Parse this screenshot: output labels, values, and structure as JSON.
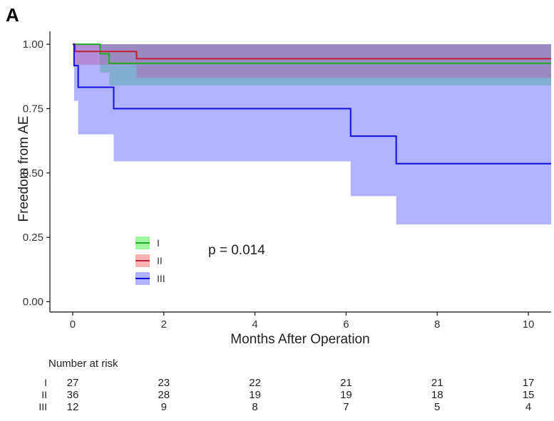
{
  "panel_label": "A",
  "chart_data": {
    "type": "line",
    "subtype": "kaplan-meier step curves with confidence bands",
    "title": "",
    "xlabel": "Months After Operation",
    "ylabel": "Freedom from AE",
    "xlim": [
      -0.5,
      10.5
    ],
    "ylim": [
      -0.04,
      1.05
    ],
    "xticks": [
      0,
      2,
      4,
      6,
      8,
      10
    ],
    "xtick_labels": [
      "0",
      "2",
      "4",
      "6",
      "8",
      "10"
    ],
    "yticks": [
      0.0,
      0.25,
      0.5,
      0.75,
      1.0
    ],
    "ytick_labels": [
      "0.00",
      "0.25",
      "0.50",
      "0.75",
      "1.00"
    ],
    "grid": false,
    "legend_position": "inside-bottom-left",
    "annotation": "p = 0.014",
    "series": [
      {
        "name": "I",
        "color": "#22aa22",
        "band_color": "#44ee44",
        "steps": [
          [
            0,
            1.0
          ],
          [
            0.6,
            0.963
          ],
          [
            0.8,
            0.926
          ],
          [
            10.5,
            0.926
          ]
        ],
        "band": [
          [
            0,
            1.0,
            1.0
          ],
          [
            0.6,
            0.89,
            1.0
          ],
          [
            0.8,
            0.84,
            1.0
          ],
          [
            10.5,
            0.84,
            1.0
          ]
        ]
      },
      {
        "name": "II",
        "color": "#bb2233",
        "band_color": "#ff6666",
        "steps": [
          [
            0,
            1.0
          ],
          [
            0.05,
            0.972
          ],
          [
            1.4,
            0.944
          ],
          [
            10.5,
            0.944
          ]
        ],
        "band": [
          [
            0,
            1.0,
            1.0
          ],
          [
            0.05,
            0.92,
            1.0
          ],
          [
            1.4,
            0.87,
            1.0
          ],
          [
            10.5,
            0.87,
            1.0
          ]
        ]
      },
      {
        "name": "III",
        "color": "#1111dd",
        "band_color": "#6666ff",
        "steps": [
          [
            0,
            1.0
          ],
          [
            0.03,
            0.917
          ],
          [
            0.12,
            0.833
          ],
          [
            0.9,
            0.75
          ],
          [
            6.1,
            0.643
          ],
          [
            7.1,
            0.536
          ],
          [
            10.5,
            0.536
          ]
        ],
        "band": [
          [
            0,
            1.0,
            1.0
          ],
          [
            0.03,
            0.78,
            1.0
          ],
          [
            0.12,
            0.65,
            1.0
          ],
          [
            0.9,
            0.545,
            1.0
          ],
          [
            6.1,
            0.41,
            1.0
          ],
          [
            7.1,
            0.3,
            1.0
          ],
          [
            10.5,
            0.3,
            1.0
          ]
        ]
      }
    ],
    "risk_table": {
      "title": "Number at risk",
      "times": [
        0,
        2,
        4,
        6,
        8,
        10
      ],
      "rows": [
        {
          "label": "I",
          "counts": [
            "27",
            "23",
            "22",
            "21",
            "21",
            "17"
          ]
        },
        {
          "label": "II",
          "counts": [
            "36",
            "28",
            "19",
            "19",
            "18",
            "15"
          ]
        },
        {
          "label": "III",
          "counts": [
            "12",
            "9",
            "8",
            "7",
            "5",
            "4"
          ]
        }
      ]
    }
  }
}
